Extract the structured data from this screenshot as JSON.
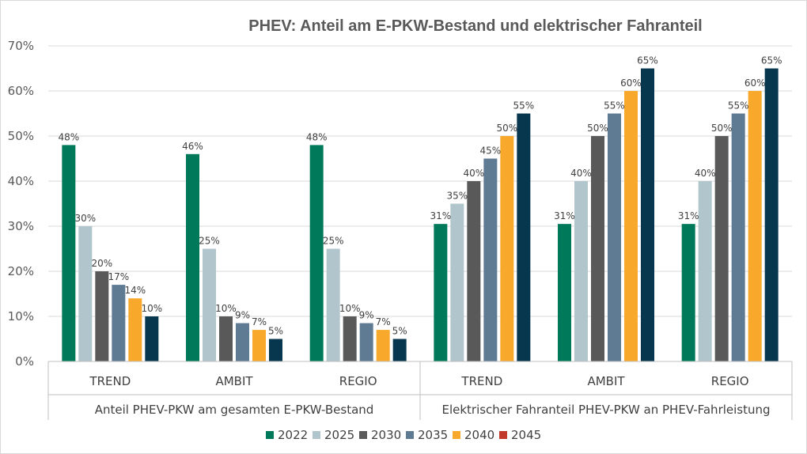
{
  "chart_data": {
    "type": "bar",
    "title": "PHEV: Anteil am E-PKW-Bestand und elektrischer Fahranteil",
    "xlabel": "",
    "ylabel": "",
    "ylim": [
      0,
      70
    ],
    "y_ticks": [
      "0%",
      "10%",
      "20%",
      "30%",
      "40%",
      "50%",
      "60%",
      "70%"
    ],
    "grid": true,
    "legend_position": "bottom",
    "groups": [
      {
        "label": "Anteil PHEV-PKW am gesamten E-PKW-Bestand",
        "categories": [
          "TREND",
          "AMBIT",
          "REGIO"
        ]
      },
      {
        "label": "Elektrischer Fahranteil PHEV-PKW an PHEV-Fahrleistung",
        "categories": [
          "TREND",
          "AMBIT",
          "REGIO"
        ]
      }
    ],
    "categories": [
      "TREND",
      "AMBIT",
      "REGIO",
      "TREND",
      "AMBIT",
      "REGIO"
    ],
    "series": [
      {
        "name": "2022",
        "color": "#00785a",
        "values": [
          48,
          46,
          48,
          30.5,
          30.5,
          30.5
        ],
        "labels": [
          "48%",
          "46%",
          "48%",
          "31%",
          "31%",
          "31%"
        ]
      },
      {
        "name": "2025",
        "color": "#b1c5cd",
        "values": [
          30,
          25,
          25,
          35,
          40,
          40
        ],
        "labels": [
          "30%",
          "25%",
          "25%",
          "35%",
          "40%",
          "40%"
        ]
      },
      {
        "name": "2030",
        "color": "#595959",
        "values": [
          20,
          10,
          10,
          40,
          50,
          50
        ],
        "labels": [
          "20%",
          "10%",
          "10%",
          "40%",
          "50%",
          "50%"
        ]
      },
      {
        "name": "2035",
        "color": "#5f7a93",
        "values": [
          17,
          8.5,
          8.5,
          45,
          55,
          55
        ],
        "labels": [
          "17%",
          "9%",
          "9%",
          "45%",
          "55%",
          "55%"
        ]
      },
      {
        "name": "2040",
        "color": "#f8a82a",
        "values": [
          14,
          7,
          7,
          50,
          60,
          60
        ],
        "labels": [
          "14%",
          "7%",
          "7%",
          "50%",
          "60%",
          "60%"
        ]
      },
      {
        "name": "2045",
        "color": "#c0392b",
        "values": [
          null,
          null,
          null,
          null,
          null,
          null
        ],
        "labels": [
          null,
          null,
          null,
          null,
          null,
          null
        ]
      }
    ],
    "extra_bars": {
      "color": "#07364f",
      "values": [
        10,
        5,
        5,
        55,
        65,
        65
      ],
      "labels": [
        "10%",
        "5%",
        "5%",
        "55%",
        "65%",
        "65%"
      ]
    }
  }
}
